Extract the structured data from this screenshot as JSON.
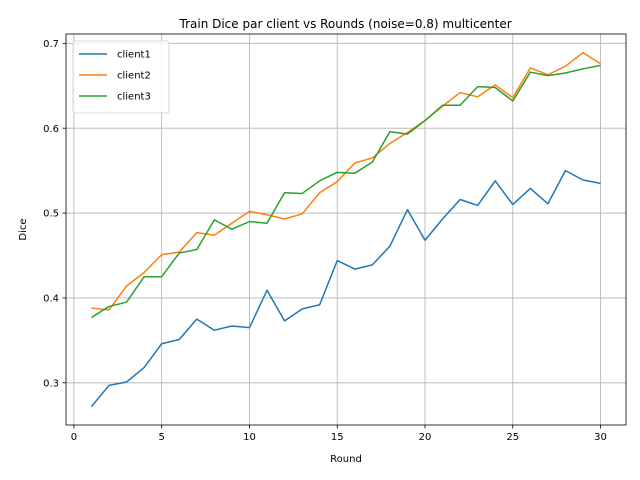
{
  "chart_data": {
    "type": "line",
    "title": "Train Dice par client vs Rounds (noise=0.8) multicenter",
    "xlabel": "Round",
    "ylabel": "Dice",
    "xlim": [
      -0.45,
      31.45
    ],
    "ylim": [
      0.2503,
      0.711
    ],
    "xticks": [
      0,
      5,
      10,
      15,
      20,
      25,
      30
    ],
    "yticks": [
      0.3,
      0.4,
      0.5,
      0.6,
      0.7
    ],
    "xtick_labels": [
      "0",
      "5",
      "10",
      "15",
      "20",
      "25",
      "30"
    ],
    "ytick_labels": [
      "0.3",
      "0.4",
      "0.5",
      "0.6",
      "0.7"
    ],
    "grid": true,
    "legend_position": "top-left",
    "x": [
      1,
      2,
      3,
      4,
      5,
      6,
      7,
      8,
      9,
      10,
      11,
      12,
      13,
      14,
      15,
      16,
      17,
      18,
      19,
      20,
      21,
      22,
      23,
      24,
      25,
      26,
      27,
      28,
      29,
      30
    ],
    "series": [
      {
        "name": "client1",
        "color": "#1f77b4",
        "values": [
          0.272,
          0.297,
          0.301,
          0.318,
          0.346,
          0.351,
          0.375,
          0.362,
          0.367,
          0.365,
          0.409,
          0.373,
          0.387,
          0.392,
          0.444,
          0.434,
          0.439,
          0.461,
          0.504,
          0.468,
          0.493,
          0.516,
          0.509,
          0.538,
          0.51,
          0.529,
          0.511,
          0.55,
          0.539,
          0.535
        ]
      },
      {
        "name": "client2",
        "color": "#ff7f0e",
        "values": [
          0.388,
          0.386,
          0.414,
          0.43,
          0.451,
          0.454,
          0.477,
          0.474,
          0.488,
          0.502,
          0.498,
          0.493,
          0.499,
          0.524,
          0.537,
          0.559,
          0.565,
          0.582,
          0.595,
          0.609,
          0.626,
          0.642,
          0.637,
          0.651,
          0.636,
          0.671,
          0.663,
          0.673,
          0.689,
          0.676
        ]
      },
      {
        "name": "client3",
        "color": "#2ca02c",
        "values": [
          0.377,
          0.39,
          0.395,
          0.425,
          0.425,
          0.453,
          0.457,
          0.492,
          0.481,
          0.49,
          0.488,
          0.524,
          0.523,
          0.538,
          0.548,
          0.547,
          0.56,
          0.596,
          0.593,
          0.609,
          0.627,
          0.627,
          0.649,
          0.648,
          0.632,
          0.666,
          0.662,
          0.665,
          0.67,
          0.674
        ]
      }
    ]
  }
}
